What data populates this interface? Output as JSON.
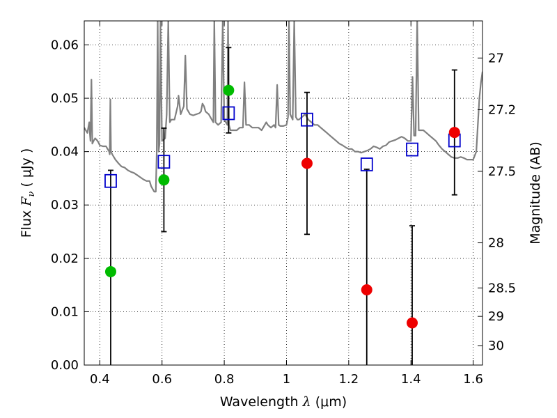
{
  "chart_data": {
    "type": "scatter",
    "title": "",
    "xlabel": "Wavelength  λ (μm)",
    "ylabel": "Flux  Fν  ( μJy )",
    "ylabel_parts": {
      "pre": "Flux ",
      "sym": "F",
      "sub": "ν",
      "post": "  ( μJy )"
    },
    "xlabel_parts": {
      "pre": "Wavelength  ",
      "sym": "λ",
      "post": " (μm)"
    },
    "y2label": "Magnitude (AB)",
    "xlim": [
      0.35,
      1.63
    ],
    "ylim": [
      0.0,
      0.0645
    ],
    "grid": true,
    "x_ticks": [
      {
        "value": 0.4,
        "label": "0.4"
      },
      {
        "value": 0.6,
        "label": "0.6"
      },
      {
        "value": 0.8,
        "label": "0.8"
      },
      {
        "value": 1.0,
        "label": "1"
      },
      {
        "value": 1.2,
        "label": "1.2"
      },
      {
        "value": 1.4,
        "label": "1.4"
      },
      {
        "value": 1.6,
        "label": "1.6"
      }
    ],
    "y_ticks": [
      {
        "value": 0.0,
        "label": "0.00"
      },
      {
        "value": 0.01,
        "label": "0.01"
      },
      {
        "value": 0.02,
        "label": "0.02"
      },
      {
        "value": 0.03,
        "label": "0.03"
      },
      {
        "value": 0.04,
        "label": "0.04"
      },
      {
        "value": 0.05,
        "label": "0.05"
      },
      {
        "value": 0.06,
        "label": "0.06"
      }
    ],
    "magnitude_ticks": [
      {
        "value": 27.0,
        "label": "27"
      },
      {
        "value": 27.2,
        "label": "27.2"
      },
      {
        "value": 27.5,
        "label": "27.5"
      },
      {
        "value": 28.0,
        "label": "28"
      },
      {
        "value": 28.5,
        "label": "28.5"
      },
      {
        "value": 29.0,
        "label": "29"
      },
      {
        "value": 30.0,
        "label": "30"
      }
    ],
    "magnitude_zero_point": 23.9,
    "model_spectrum": {
      "color": "#808080",
      "points": [
        [
          0.35,
          0.0445
        ],
        [
          0.355,
          0.044
        ],
        [
          0.36,
          0.0435
        ],
        [
          0.363,
          0.0445
        ],
        [
          0.366,
          0.0455
        ],
        [
          0.368,
          0.0435
        ],
        [
          0.37,
          0.042
        ],
        [
          0.373,
          0.0535
        ],
        [
          0.376,
          0.0415
        ],
        [
          0.38,
          0.042
        ],
        [
          0.385,
          0.0425
        ],
        [
          0.39,
          0.0422
        ],
        [
          0.395,
          0.0418
        ],
        [
          0.4,
          0.0412
        ],
        [
          0.41,
          0.041
        ],
        [
          0.42,
          0.041
        ],
        [
          0.425,
          0.0405
        ],
        [
          0.43,
          0.04
        ],
        [
          0.432,
          0.0395
        ],
        [
          0.434,
          0.0498
        ],
        [
          0.436,
          0.04
        ],
        [
          0.44,
          0.0395
        ],
        [
          0.45,
          0.0385
        ],
        [
          0.46,
          0.0378
        ],
        [
          0.47,
          0.0372
        ],
        [
          0.48,
          0.037
        ],
        [
          0.49,
          0.0365
        ],
        [
          0.5,
          0.0362
        ],
        [
          0.51,
          0.036
        ],
        [
          0.52,
          0.0356
        ],
        [
          0.53,
          0.0352
        ],
        [
          0.54,
          0.0348
        ],
        [
          0.55,
          0.0345
        ],
        [
          0.56,
          0.0345
        ],
        [
          0.565,
          0.0335
        ],
        [
          0.57,
          0.033
        ],
        [
          0.575,
          0.0325
        ],
        [
          0.58,
          0.0325
        ],
        [
          0.583,
          0.04
        ],
        [
          0.586,
          0.0645
        ],
        [
          0.589,
          0.04
        ],
        [
          0.592,
          0.0415
        ],
        [
          0.595,
          0.0645
        ],
        [
          0.598,
          0.05
        ],
        [
          0.6,
          0.042
        ],
        [
          0.61,
          0.0425
        ],
        [
          0.615,
          0.047
        ],
        [
          0.62,
          0.0645
        ],
        [
          0.625,
          0.0455
        ],
        [
          0.63,
          0.046
        ],
        [
          0.64,
          0.046
        ],
        [
          0.65,
          0.0485
        ],
        [
          0.653,
          0.0505
        ],
        [
          0.656,
          0.049
        ],
        [
          0.66,
          0.047
        ],
        [
          0.67,
          0.0485
        ],
        [
          0.675,
          0.058
        ],
        [
          0.68,
          0.048
        ],
        [
          0.69,
          0.047
        ],
        [
          0.7,
          0.0468
        ],
        [
          0.71,
          0.047
        ],
        [
          0.72,
          0.0472
        ],
        [
          0.725,
          0.0475
        ],
        [
          0.73,
          0.049
        ],
        [
          0.735,
          0.0485
        ],
        [
          0.74,
          0.0475
        ],
        [
          0.75,
          0.047
        ],
        [
          0.76,
          0.046
        ],
        [
          0.765,
          0.0455
        ],
        [
          0.768,
          0.0645
        ],
        [
          0.772,
          0.0455
        ],
        [
          0.78,
          0.045
        ],
        [
          0.79,
          0.0455
        ],
        [
          0.795,
          0.0645
        ],
        [
          0.8,
          0.046
        ],
        [
          0.81,
          0.045
        ],
        [
          0.812,
          0.0645
        ],
        [
          0.815,
          0.045
        ],
        [
          0.82,
          0.044
        ],
        [
          0.83,
          0.044
        ],
        [
          0.84,
          0.044
        ],
        [
          0.85,
          0.0445
        ],
        [
          0.86,
          0.0445
        ],
        [
          0.865,
          0.053
        ],
        [
          0.87,
          0.045
        ],
        [
          0.88,
          0.045
        ],
        [
          0.89,
          0.0445
        ],
        [
          0.9,
          0.0445
        ],
        [
          0.91,
          0.0445
        ],
        [
          0.92,
          0.044
        ],
        [
          0.925,
          0.0445
        ],
        [
          0.93,
          0.045
        ],
        [
          0.935,
          0.0455
        ],
        [
          0.94,
          0.045
        ],
        [
          0.95,
          0.0445
        ],
        [
          0.96,
          0.045
        ],
        [
          0.965,
          0.0445
        ],
        [
          0.97,
          0.0525
        ],
        [
          0.975,
          0.045
        ],
        [
          0.98,
          0.0448
        ],
        [
          0.99,
          0.0448
        ],
        [
          1.0,
          0.045
        ],
        [
          1.005,
          0.0465
        ],
        [
          1.008,
          0.0645
        ],
        [
          1.012,
          0.047
        ],
        [
          1.02,
          0.046
        ],
        [
          1.025,
          0.0645
        ],
        [
          1.03,
          0.0465
        ],
        [
          1.035,
          0.046
        ],
        [
          1.04,
          0.046
        ],
        [
          1.05,
          0.0465
        ],
        [
          1.06,
          0.047
        ],
        [
          1.07,
          0.046
        ],
        [
          1.08,
          0.0455
        ],
        [
          1.09,
          0.045
        ],
        [
          1.1,
          0.045
        ],
        [
          1.11,
          0.0445
        ],
        [
          1.12,
          0.044
        ],
        [
          1.13,
          0.0435
        ],
        [
          1.14,
          0.043
        ],
        [
          1.15,
          0.0425
        ],
        [
          1.16,
          0.042
        ],
        [
          1.17,
          0.0415
        ],
        [
          1.18,
          0.0412
        ],
        [
          1.19,
          0.0408
        ],
        [
          1.2,
          0.0405
        ],
        [
          1.21,
          0.0405
        ],
        [
          1.22,
          0.04
        ],
        [
          1.23,
          0.04
        ],
        [
          1.24,
          0.0398
        ],
        [
          1.25,
          0.04
        ],
        [
          1.26,
          0.0402
        ],
        [
          1.27,
          0.0405
        ],
        [
          1.28,
          0.041
        ],
        [
          1.29,
          0.0408
        ],
        [
          1.3,
          0.0405
        ],
        [
          1.31,
          0.041
        ],
        [
          1.32,
          0.0412
        ],
        [
          1.33,
          0.0418
        ],
        [
          1.34,
          0.042
        ],
        [
          1.35,
          0.0422
        ],
        [
          1.36,
          0.0425
        ],
        [
          1.37,
          0.0428
        ],
        [
          1.38,
          0.0425
        ],
        [
          1.39,
          0.042
        ],
        [
          1.4,
          0.042
        ],
        [
          1.405,
          0.054
        ],
        [
          1.41,
          0.043
        ],
        [
          1.415,
          0.043
        ],
        [
          1.42,
          0.0645
        ],
        [
          1.425,
          0.044
        ],
        [
          1.43,
          0.044
        ],
        [
          1.44,
          0.044
        ],
        [
          1.45,
          0.0435
        ],
        [
          1.46,
          0.043
        ],
        [
          1.47,
          0.0425
        ],
        [
          1.48,
          0.042
        ],
        [
          1.49,
          0.0412
        ],
        [
          1.5,
          0.0405
        ],
        [
          1.51,
          0.04
        ],
        [
          1.52,
          0.0395
        ],
        [
          1.53,
          0.039
        ],
        [
          1.54,
          0.0388
        ],
        [
          1.55,
          0.0388
        ],
        [
          1.56,
          0.039
        ],
        [
          1.57,
          0.0388
        ],
        [
          1.58,
          0.0385
        ],
        [
          1.59,
          0.0385
        ],
        [
          1.6,
          0.0385
        ],
        [
          1.61,
          0.04
        ],
        [
          1.615,
          0.045
        ],
        [
          1.62,
          0.05
        ],
        [
          1.625,
          0.053
        ],
        [
          1.63,
          0.055
        ]
      ]
    },
    "model_photometry": {
      "marker": "open-square",
      "color": "#0000cc",
      "points": [
        {
          "x": 0.435,
          "y": 0.0345
        },
        {
          "x": 0.606,
          "y": 0.0381
        },
        {
          "x": 0.814,
          "y": 0.0472
        },
        {
          "x": 1.066,
          "y": 0.046
        },
        {
          "x": 1.258,
          "y": 0.0376
        },
        {
          "x": 1.404,
          "y": 0.0404
        },
        {
          "x": 1.54,
          "y": 0.0421
        }
      ]
    },
    "observed_detections": {
      "marker": "filled-circle",
      "color": "#00bb00",
      "points": [
        {
          "x": 0.435,
          "y": 0.0175,
          "err": 0.019
        },
        {
          "x": 0.606,
          "y": 0.0347,
          "err": 0.0097
        },
        {
          "x": 0.814,
          "y": 0.0515,
          "err": 0.008
        }
      ]
    },
    "observed_lowsn": {
      "marker": "filled-circle",
      "color": "#ee0000",
      "points": [
        {
          "x": 1.066,
          "y": 0.0378,
          "err": 0.0133
        },
        {
          "x": 1.258,
          "y": 0.0141,
          "err": 0.0226
        },
        {
          "x": 1.404,
          "y": 0.0079,
          "err": 0.0182
        },
        {
          "x": 1.54,
          "y": 0.0436,
          "err": 0.0117
        }
      ]
    }
  }
}
